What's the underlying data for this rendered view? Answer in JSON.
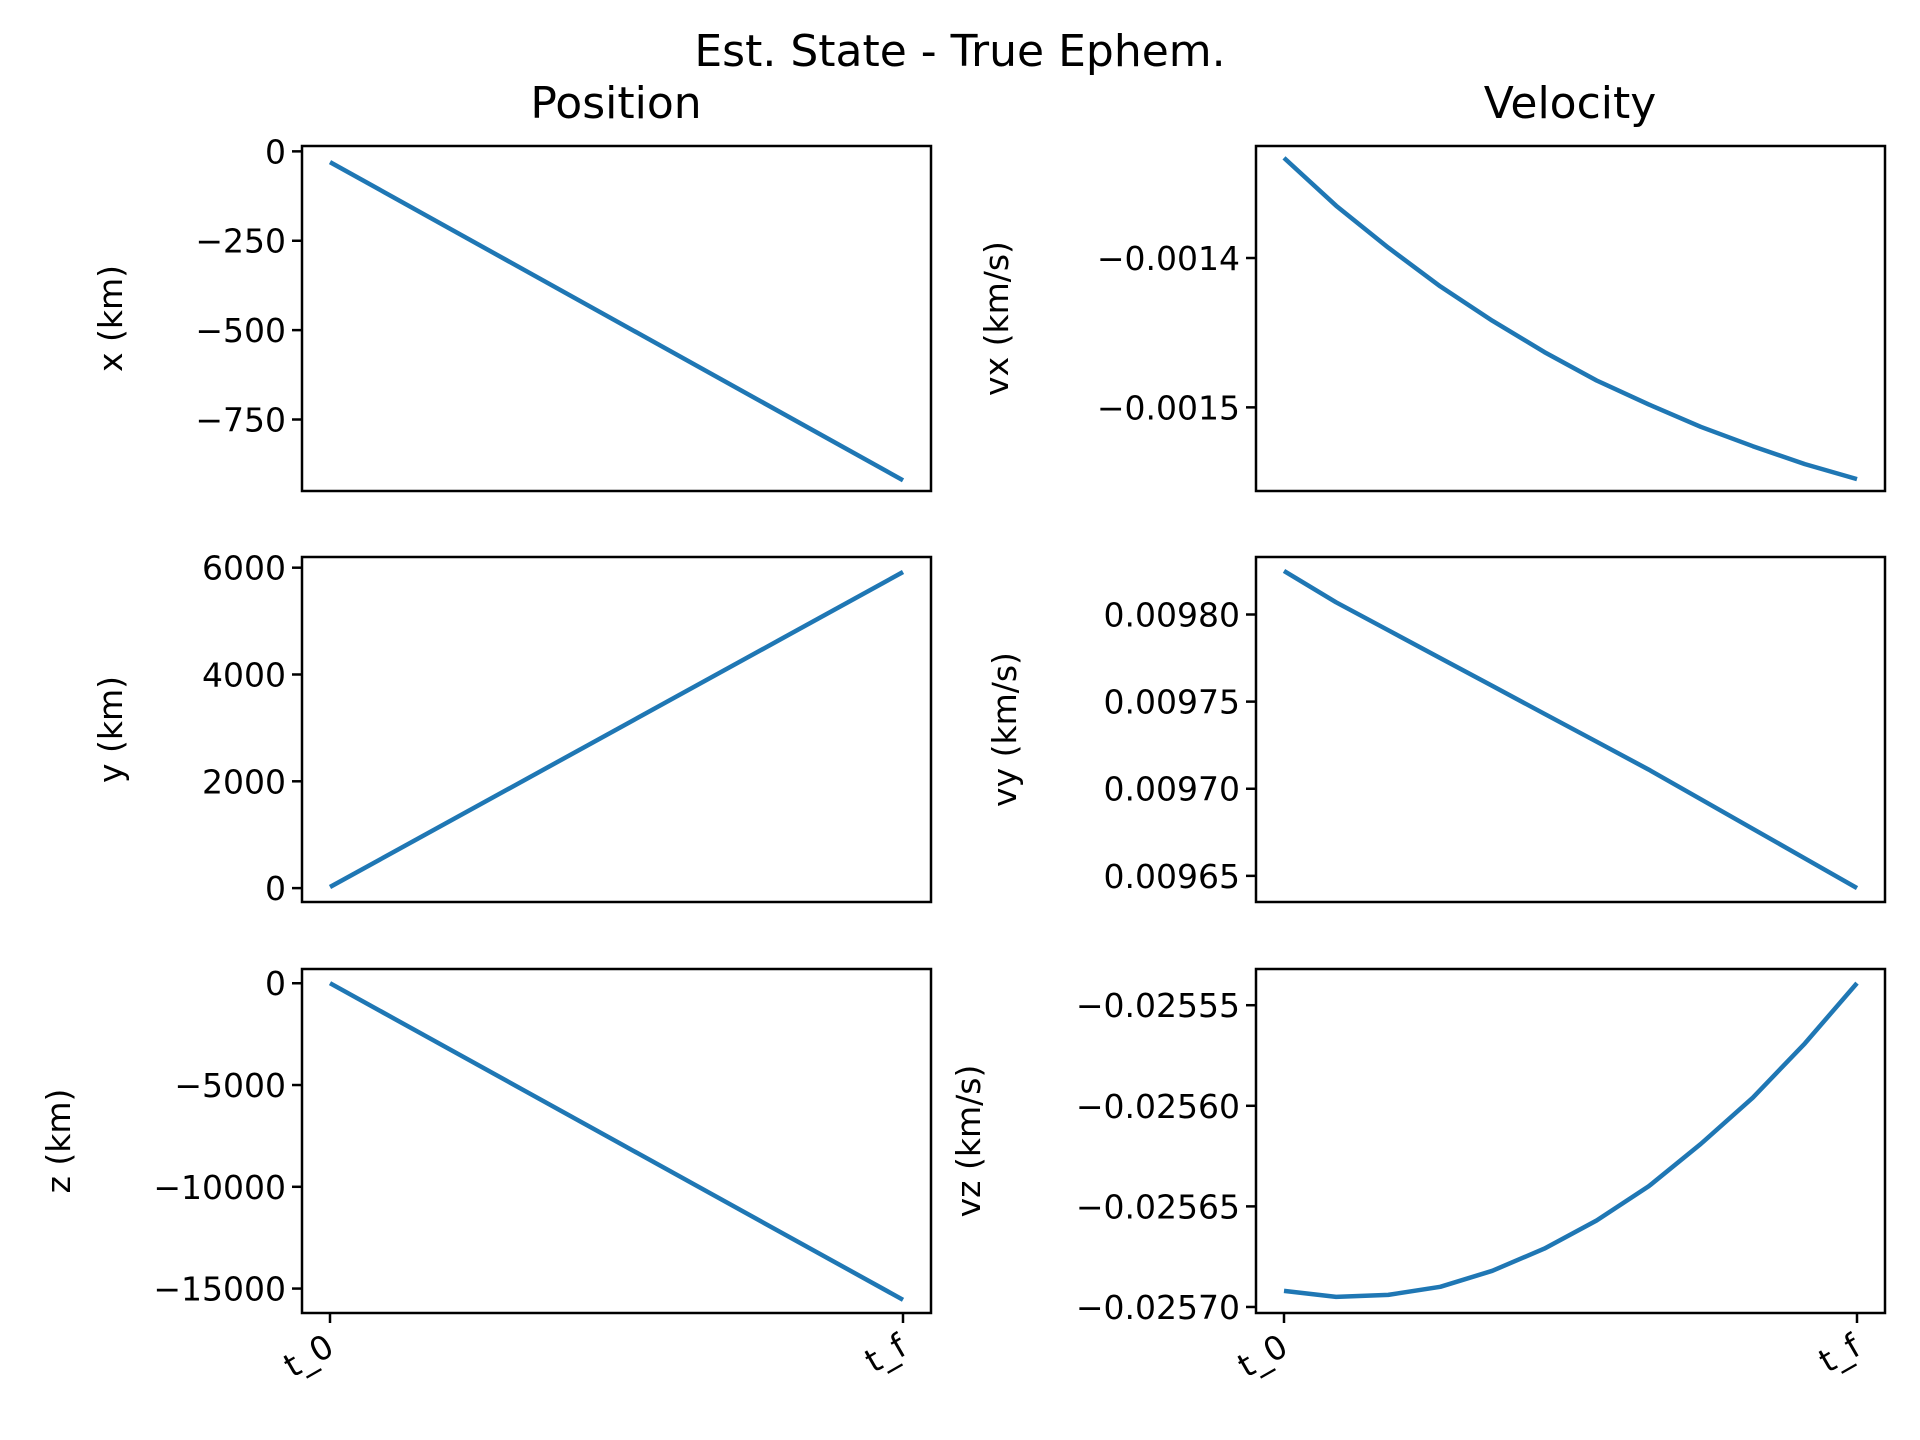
{
  "colors": {
    "series": "#1f77b4",
    "axes": "#000000",
    "background": "#ffffff"
  },
  "figure": {
    "suptitle": "Est. State - True Ephem.",
    "column_titles": [
      "Position",
      "Velocity"
    ]
  },
  "chart_data": [
    {
      "id": "x",
      "type": "line",
      "column": "Position",
      "ylabel": "x (km)",
      "x": [
        0,
        1
      ],
      "xticklabels": [
        "t_0",
        "t_f"
      ],
      "y": [
        -30,
        -920
      ],
      "ylim": [
        -950,
        15
      ],
      "yticks": [
        0,
        -250,
        -500,
        -750
      ],
      "yticklabels": [
        "0",
        "−250",
        "−500",
        "−750"
      ],
      "grid": false,
      "legend": "none"
    },
    {
      "id": "vx",
      "type": "line",
      "column": "Velocity",
      "ylabel": "vx (km/s)",
      "x": [
        0,
        0.0909,
        0.1818,
        0.2727,
        0.3636,
        0.4545,
        0.5455,
        0.6364,
        0.7273,
        0.8182,
        0.9091,
        1
      ],
      "xticklabels": [
        "t_0",
        "t_f"
      ],
      "y": [
        -0.001333,
        -0.001365,
        -0.001393,
        -0.001419,
        -0.001442,
        -0.001463,
        -0.001482,
        -0.001498,
        -0.001513,
        -0.001526,
        -0.001538,
        -0.001548
      ],
      "ylim": [
        -0.001556,
        -0.001325
      ],
      "yticks": [
        -0.0014,
        -0.0015
      ],
      "yticklabels": [
        "−0.0014",
        "−0.0015"
      ],
      "grid": false,
      "legend": "none"
    },
    {
      "id": "y",
      "type": "line",
      "column": "Position",
      "ylabel": "y (km)",
      "x": [
        0,
        1
      ],
      "xticklabels": [
        "t_0",
        "t_f"
      ],
      "y": [
        20,
        5920
      ],
      "ylim": [
        -260,
        6200
      ],
      "yticks": [
        0,
        2000,
        4000,
        6000
      ],
      "yticklabels": [
        "0",
        "2000",
        "4000",
        "6000"
      ],
      "grid": false,
      "legend": "none"
    },
    {
      "id": "vy",
      "type": "line",
      "column": "Velocity",
      "ylabel": "vy (km/s)",
      "x": [
        0,
        0.0909,
        0.1818,
        0.2727,
        0.3636,
        0.4545,
        0.5455,
        0.6364,
        0.7273,
        0.8182,
        0.9091,
        1
      ],
      "xticklabels": [
        "t_0",
        "t_f"
      ],
      "y": [
        0.009825,
        0.009807,
        0.009791,
        0.009775,
        0.009759,
        0.009743,
        0.009727,
        0.009711,
        0.009694,
        0.009677,
        0.00966,
        0.009643
      ],
      "ylim": [
        0.009635,
        0.009833
      ],
      "yticks": [
        0.0098,
        0.00975,
        0.0097,
        0.00965
      ],
      "yticklabels": [
        "0.00980",
        "0.00975",
        "0.00970",
        "0.00965"
      ],
      "grid": false,
      "legend": "none"
    },
    {
      "id": "z",
      "type": "line",
      "column": "Position",
      "ylabel": "z (km)",
      "x": [
        0,
        1
      ],
      "xticklabels": [
        "t_0",
        "t_f"
      ],
      "y": [
        0,
        -15550
      ],
      "ylim": [
        -16200,
        700
      ],
      "yticks": [
        0,
        -5000,
        -10000,
        -15000
      ],
      "yticklabels": [
        "0",
        "−5000",
        "−10000",
        "−15000"
      ],
      "grid": false,
      "legend": "none"
    },
    {
      "id": "vz",
      "type": "line",
      "column": "Velocity",
      "ylabel": "vz (km/s)",
      "x": [
        0,
        0.0909,
        0.1818,
        0.2727,
        0.3636,
        0.4545,
        0.5455,
        0.6364,
        0.7273,
        0.8182,
        0.9091,
        1
      ],
      "xticklabels": [
        "t_0",
        "t_f"
      ],
      "y": [
        -0.025692,
        -0.025695,
        -0.025694,
        -0.02569,
        -0.025682,
        -0.025671,
        -0.025657,
        -0.02564,
        -0.025619,
        -0.025596,
        -0.025569,
        -0.025539
      ],
      "ylim": [
        -0.025703,
        -0.025532
      ],
      "yticks": [
        -0.02555,
        -0.0256,
        -0.02565,
        -0.0257
      ],
      "yticklabels": [
        "−0.02555",
        "−0.02560",
        "−0.02565",
        "−0.02570"
      ],
      "grid": false,
      "legend": "none"
    }
  ]
}
